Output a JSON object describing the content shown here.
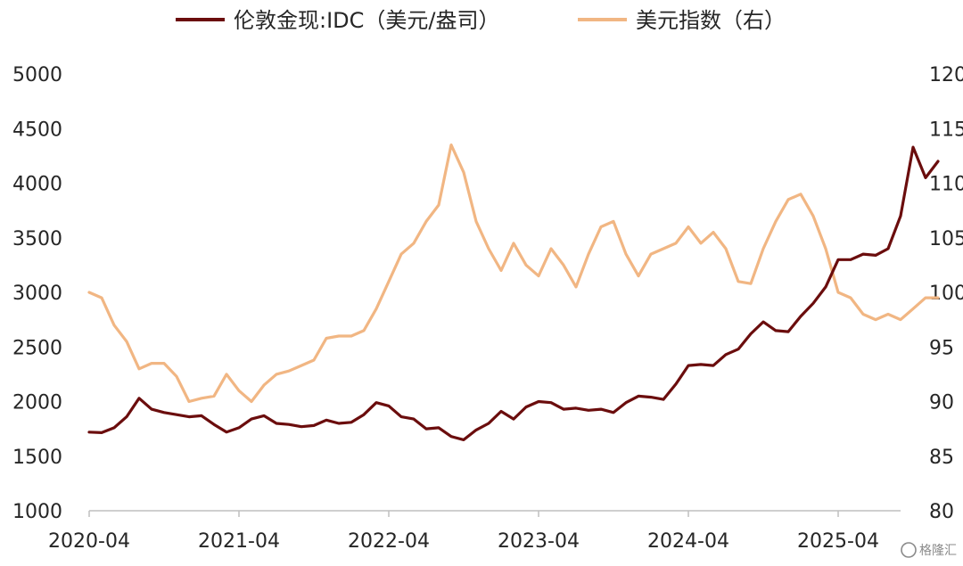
{
  "chart_data": {
    "type": "line",
    "x_axis": {
      "ticks": [
        "2020-04",
        "2021-04",
        "2022-04",
        "2023-04",
        "2024-04",
        "2025-04"
      ],
      "range": [
        "2020-04",
        "2025-09"
      ]
    },
    "y_axis_left": {
      "min": 1000,
      "max": 5000,
      "ticks": [
        1000,
        1500,
        2000,
        2500,
        3000,
        3500,
        4000,
        4500,
        5000
      ]
    },
    "y_axis_right": {
      "min": 80,
      "max": 120,
      "ticks": [
        80,
        85,
        90,
        95,
        100,
        105,
        110,
        115,
        120
      ]
    },
    "grid": false,
    "legend_position": "top",
    "series": [
      {
        "name": "伦敦金现:IDC（美元/盎司）",
        "axis": "left",
        "color": "#6b0d0d",
        "points": [
          [
            "2020-04",
            1720
          ],
          [
            "2020-05",
            1715
          ],
          [
            "2020-06",
            1760
          ],
          [
            "2020-07",
            1860
          ],
          [
            "2020-08",
            2030
          ],
          [
            "2020-09",
            1930
          ],
          [
            "2020-10",
            1900
          ],
          [
            "2020-11",
            1880
          ],
          [
            "2020-12",
            1860
          ],
          [
            "2021-01",
            1870
          ],
          [
            "2021-02",
            1790
          ],
          [
            "2021-03",
            1720
          ],
          [
            "2021-04",
            1760
          ],
          [
            "2021-05",
            1840
          ],
          [
            "2021-06",
            1870
          ],
          [
            "2021-07",
            1800
          ],
          [
            "2021-08",
            1790
          ],
          [
            "2021-09",
            1770
          ],
          [
            "2021-10",
            1780
          ],
          [
            "2021-11",
            1830
          ],
          [
            "2021-12",
            1800
          ],
          [
            "2022-01",
            1810
          ],
          [
            "2022-02",
            1880
          ],
          [
            "2022-03",
            1990
          ],
          [
            "2022-04",
            1960
          ],
          [
            "2022-05",
            1860
          ],
          [
            "2022-06",
            1840
          ],
          [
            "2022-07",
            1750
          ],
          [
            "2022-08",
            1760
          ],
          [
            "2022-09",
            1680
          ],
          [
            "2022-10",
            1650
          ],
          [
            "2022-11",
            1740
          ],
          [
            "2022-12",
            1800
          ],
          [
            "2023-01",
            1910
          ],
          [
            "2023-02",
            1840
          ],
          [
            "2023-03",
            1950
          ],
          [
            "2023-04",
            2000
          ],
          [
            "2023-05",
            1990
          ],
          [
            "2023-06",
            1930
          ],
          [
            "2023-07",
            1940
          ],
          [
            "2023-08",
            1920
          ],
          [
            "2023-09",
            1930
          ],
          [
            "2023-10",
            1900
          ],
          [
            "2023-11",
            1990
          ],
          [
            "2023-12",
            2050
          ],
          [
            "2024-01",
            2040
          ],
          [
            "2024-02",
            2020
          ],
          [
            "2024-03",
            2160
          ],
          [
            "2024-04",
            2330
          ],
          [
            "2024-05",
            2340
          ],
          [
            "2024-06",
            2330
          ],
          [
            "2024-07",
            2430
          ],
          [
            "2024-08",
            2480
          ],
          [
            "2024-09",
            2620
          ],
          [
            "2024-10",
            2730
          ],
          [
            "2024-11",
            2650
          ],
          [
            "2024-12",
            2640
          ],
          [
            "2025-01",
            2780
          ],
          [
            "2025-02",
            2900
          ],
          [
            "2025-03",
            3050
          ],
          [
            "2025-04",
            3300
          ],
          [
            "2025-05",
            3300
          ],
          [
            "2025-06",
            3350
          ],
          [
            "2025-07",
            3340
          ],
          [
            "2025-08",
            3400
          ],
          [
            "2025-09",
            3700
          ],
          [
            "2025-10",
            4330
          ],
          [
            "2025-11",
            4050
          ],
          [
            "2025-12",
            4200
          ]
        ]
      },
      {
        "name": "美元指数（右）",
        "axis": "right",
        "color": "#f1b683",
        "points": [
          [
            "2020-04",
            100.0
          ],
          [
            "2020-05",
            99.5
          ],
          [
            "2020-06",
            97.0
          ],
          [
            "2020-07",
            95.5
          ],
          [
            "2020-08",
            93.0
          ],
          [
            "2020-09",
            93.5
          ],
          [
            "2020-10",
            93.5
          ],
          [
            "2020-11",
            92.3
          ],
          [
            "2020-12",
            90.0
          ],
          [
            "2021-01",
            90.3
          ],
          [
            "2021-02",
            90.5
          ],
          [
            "2021-03",
            92.5
          ],
          [
            "2021-04",
            91.0
          ],
          [
            "2021-05",
            90.0
          ],
          [
            "2021-06",
            91.5
          ],
          [
            "2021-07",
            92.5
          ],
          [
            "2021-08",
            92.8
          ],
          [
            "2021-09",
            93.3
          ],
          [
            "2021-10",
            93.8
          ],
          [
            "2021-11",
            95.8
          ],
          [
            "2021-12",
            96.0
          ],
          [
            "2022-01",
            96.0
          ],
          [
            "2022-02",
            96.5
          ],
          [
            "2022-03",
            98.5
          ],
          [
            "2022-04",
            101.0
          ],
          [
            "2022-05",
            103.5
          ],
          [
            "2022-06",
            104.5
          ],
          [
            "2022-07",
            106.5
          ],
          [
            "2022-08",
            108.0
          ],
          [
            "2022-09",
            113.5
          ],
          [
            "2022-10",
            111.0
          ],
          [
            "2022-11",
            106.5
          ],
          [
            "2022-12",
            104.0
          ],
          [
            "2023-01",
            102.0
          ],
          [
            "2023-02",
            104.5
          ],
          [
            "2023-03",
            102.5
          ],
          [
            "2023-04",
            101.5
          ],
          [
            "2023-05",
            104.0
          ],
          [
            "2023-06",
            102.5
          ],
          [
            "2023-07",
            100.5
          ],
          [
            "2023-08",
            103.5
          ],
          [
            "2023-09",
            106.0
          ],
          [
            "2023-10",
            106.5
          ],
          [
            "2023-11",
            103.5
          ],
          [
            "2023-12",
            101.5
          ],
          [
            "2024-01",
            103.5
          ],
          [
            "2024-02",
            104.0
          ],
          [
            "2024-03",
            104.5
          ],
          [
            "2024-04",
            106.0
          ],
          [
            "2024-05",
            104.5
          ],
          [
            "2024-06",
            105.5
          ],
          [
            "2024-07",
            104.0
          ],
          [
            "2024-08",
            101.0
          ],
          [
            "2024-09",
            100.8
          ],
          [
            "2024-10",
            104.0
          ],
          [
            "2024-11",
            106.5
          ],
          [
            "2024-12",
            108.5
          ],
          [
            "2025-01",
            109.0
          ],
          [
            "2025-02",
            107.0
          ],
          [
            "2025-03",
            104.0
          ],
          [
            "2025-04",
            100.0
          ],
          [
            "2025-05",
            99.5
          ],
          [
            "2025-06",
            98.0
          ],
          [
            "2025-07",
            97.5
          ],
          [
            "2025-08",
            98.0
          ],
          [
            "2025-09",
            97.5
          ],
          [
            "2025-10",
            98.5
          ],
          [
            "2025-11",
            99.5
          ],
          [
            "2025-12",
            99.5
          ]
        ]
      }
    ]
  },
  "watermark": {
    "text": "格隆汇",
    "icon": "watermark-g-icon"
  }
}
